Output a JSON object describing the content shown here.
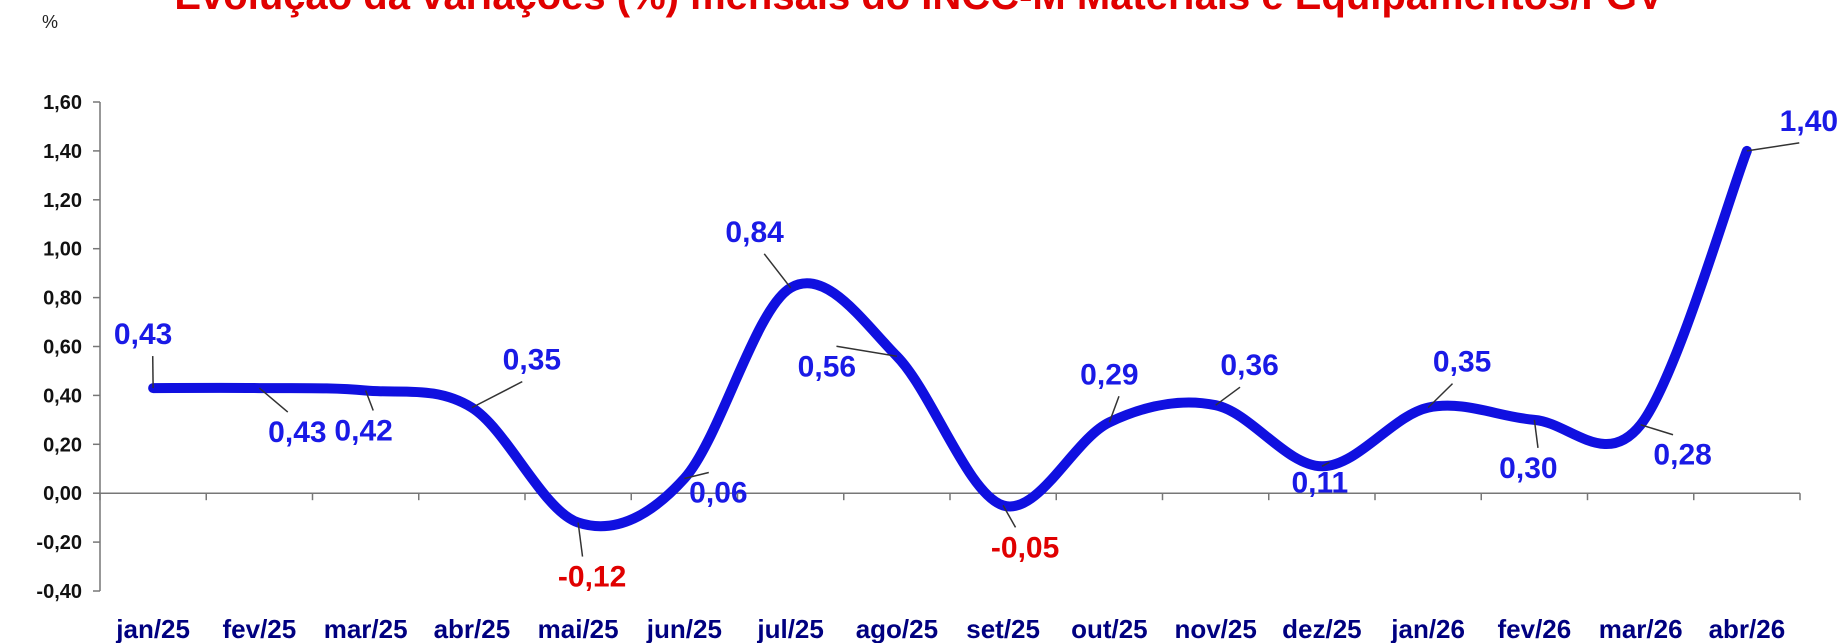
{
  "chart_data": {
    "type": "line",
    "title": "Evolução da variações (%) mensais do INCC-M Materiais e Equipamentos/FGV",
    "ylabel": "%",
    "xlabel": "",
    "categories": [
      "jan/25",
      "fev/25",
      "mar/25",
      "abr/25",
      "mai/25",
      "jun/25",
      "jul/25",
      "ago/25",
      "set/25",
      "out/25",
      "nov/25",
      "dez/25",
      "jan/26",
      "fev/26",
      "mar/26",
      "abr/26"
    ],
    "values": [
      0.43,
      0.43,
      0.42,
      0.35,
      -0.12,
      0.06,
      0.84,
      0.56,
      -0.05,
      0.29,
      0.36,
      0.11,
      0.35,
      0.3,
      0.28,
      1.4
    ],
    "data_labels": [
      "0,43",
      "0,43",
      "0,42",
      "0,35",
      "-0,12",
      "0,06",
      "0,84",
      "0,56",
      "-0,05",
      "0,29",
      "0,36",
      "0,11",
      "0,35",
      "0,30",
      "0,28",
      "1,40"
    ],
    "y_ticks": [
      "1,60",
      "1,40",
      "1,20",
      "1,00",
      "0,80",
      "0,60",
      "0,40",
      "0,20",
      "0,00",
      "-0,20",
      "-0,40"
    ],
    "ylim": [
      -0.4,
      1.6
    ],
    "grid": false,
    "line_color": "#1010e0",
    "positive_label_color": "#1a1ae6",
    "negative_label_color": "#e00000",
    "title_color": "#e00000"
  }
}
